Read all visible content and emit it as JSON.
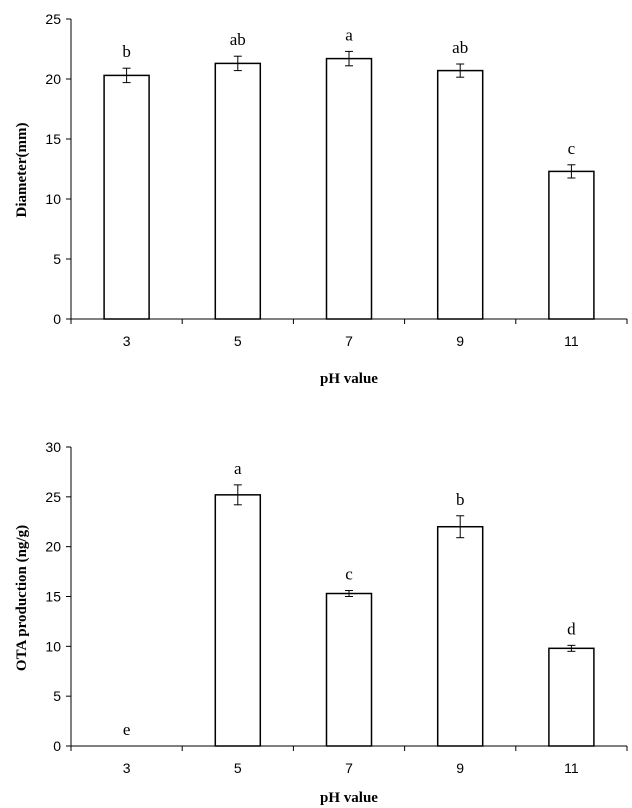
{
  "chart_data": [
    {
      "type": "bar",
      "categories": [
        "3",
        "5",
        "7",
        "9",
        "11"
      ],
      "values": [
        20.3,
        21.3,
        21.7,
        20.7,
        12.3
      ],
      "errors": [
        0.6,
        0.6,
        0.6,
        0.55,
        0.55
      ],
      "labels": [
        "b",
        "ab",
        "a",
        "ab",
        "c"
      ],
      "xlabel": "pH value",
      "ylabel": "Diameter(mm)",
      "ylim": [
        0,
        25
      ],
      "yticks": [
        0,
        5,
        10,
        15,
        20,
        25
      ],
      "bar_fill": "#ffffff",
      "bar_stroke": "#000000"
    },
    {
      "type": "bar",
      "categories": [
        "3",
        "5",
        "7",
        "9",
        "11"
      ],
      "values": [
        0,
        25.2,
        15.3,
        22.0,
        9.8
      ],
      "errors": [
        0,
        1.0,
        0.3,
        1.1,
        0.3
      ],
      "labels": [
        "e",
        "a",
        "c",
        "b",
        "d"
      ],
      "xlabel": "pH value",
      "ylabel": "OTA production (ng/g)",
      "ylim": [
        0,
        30
      ],
      "yticks": [
        0,
        5,
        10,
        15,
        20,
        25,
        30
      ],
      "bar_fill": "#ffffff",
      "bar_stroke": "#000000"
    }
  ]
}
